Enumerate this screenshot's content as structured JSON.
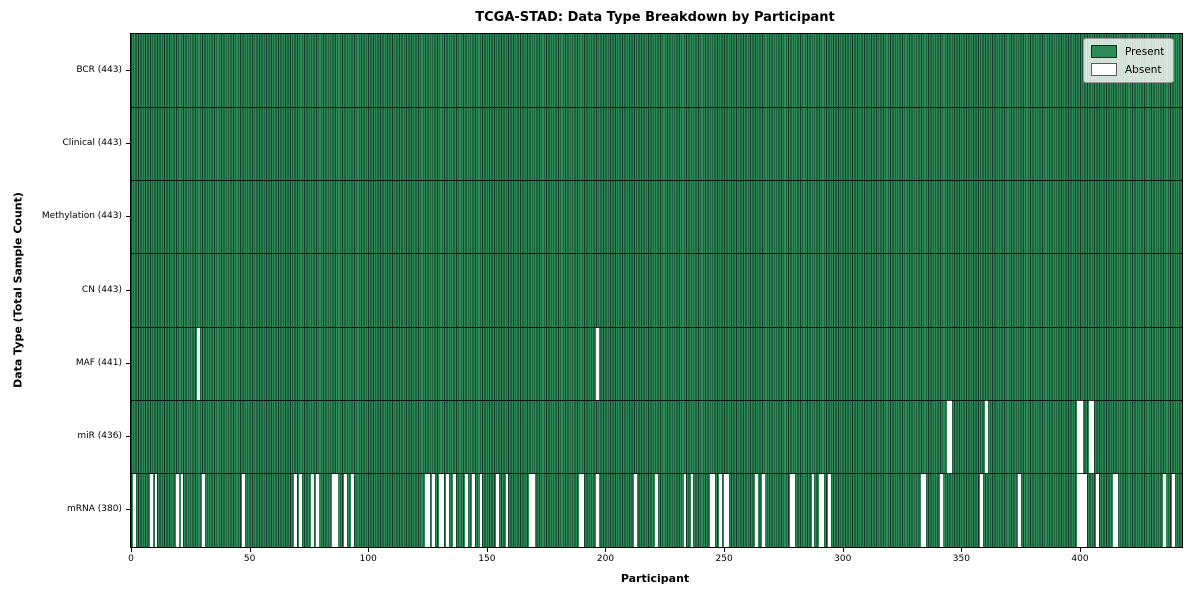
{
  "colors": {
    "present": "#2e8b57",
    "present_edge": "#123b28",
    "absent": "#ffffff",
    "axis": "#000000",
    "legend_border": "#999999"
  },
  "chart_data": {
    "type": "heatmap",
    "title": "TCGA-STAD: Data Type Breakdown by Participant",
    "xlabel": "Participant",
    "ylabel": "Data Type (Total Sample Count)",
    "x_range": [
      0,
      443
    ],
    "n_participants": 443,
    "x_ticks": [
      0,
      50,
      100,
      150,
      200,
      250,
      300,
      350,
      400
    ],
    "grid": false,
    "legend_position": "upper right",
    "legend_items": [
      {
        "label": "Present",
        "color": "#2e8b57"
      },
      {
        "label": "Absent",
        "color": "#ffffff"
      }
    ],
    "rows": [
      {
        "data_type": "BCR",
        "label": "BCR (443)",
        "present_count": 443,
        "absent_count": 0,
        "absent_participants": []
      },
      {
        "data_type": "Clinical",
        "label": "Clinical (443)",
        "present_count": 443,
        "absent_count": 0,
        "absent_participants": []
      },
      {
        "data_type": "Methylation",
        "label": "Methylation (443)",
        "present_count": 443,
        "absent_count": 0,
        "absent_participants": []
      },
      {
        "data_type": "CN",
        "label": "CN (443)",
        "present_count": 443,
        "absent_count": 0,
        "absent_participants": []
      },
      {
        "data_type": "MAF",
        "label": "MAF (441)",
        "present_count": 441,
        "absent_count": 2,
        "absent_participants": [
          28,
          196
        ]
      },
      {
        "data_type": "miR",
        "label": "miR (436)",
        "present_count": 436,
        "absent_count": 7,
        "absent_participants": [
          344,
          345,
          360,
          399,
          400,
          404,
          405
        ]
      },
      {
        "data_type": "mRNA",
        "label": "mRNA (380)",
        "present_count": 380,
        "absent_count": 63,
        "absent_participants": [
          1,
          8,
          10,
          19,
          21,
          30,
          47,
          69,
          71,
          76,
          78,
          85,
          86,
          90,
          93,
          124,
          125,
          127,
          130,
          131,
          133,
          136,
          141,
          144,
          147,
          154,
          158,
          168,
          169,
          189,
          190,
          196,
          212,
          221,
          233,
          236,
          244,
          245,
          248,
          250,
          251,
          263,
          266,
          278,
          279,
          287,
          290,
          291,
          294,
          333,
          334,
          341,
          358,
          374,
          399,
          400,
          401,
          402,
          407,
          414,
          415,
          435,
          439
        ]
      }
    ]
  }
}
